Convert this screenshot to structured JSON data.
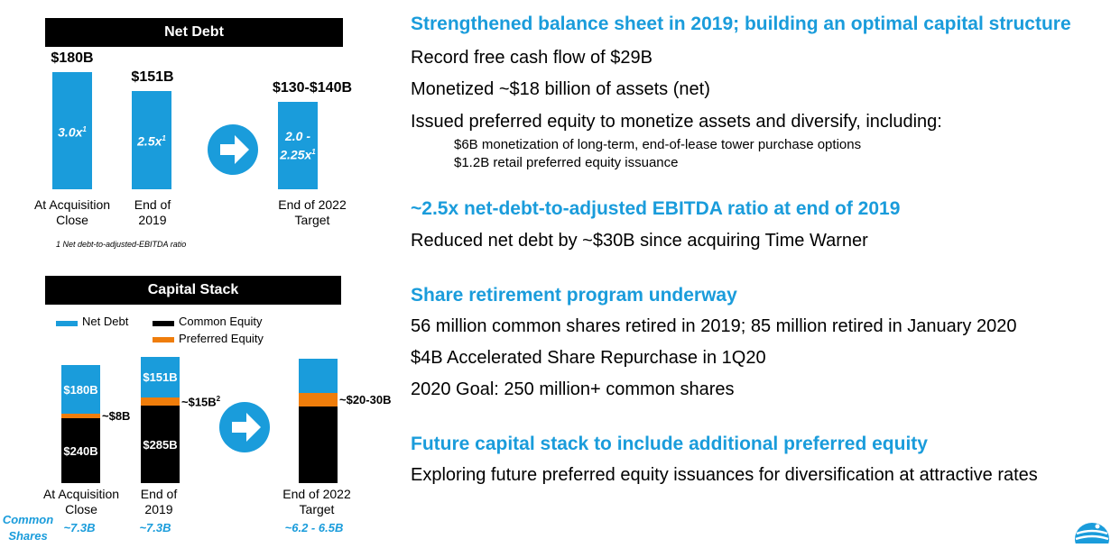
{
  "colors": {
    "accent": "#1a9cdb",
    "debt": "#1a9cdb",
    "common": "#000000",
    "preferred": "#ef7d0b"
  },
  "chart_data": [
    {
      "type": "bar",
      "title": "Net Debt",
      "categories": [
        "At Acquisition\nClose",
        "End of\n2019",
        "End of 2022\nTarget"
      ],
      "values": [
        180,
        151,
        135
      ],
      "value_labels": [
        "$180B",
        "$151B",
        "$130-$140B"
      ],
      "inner_labels": [
        "3.0x",
        "2.5x",
        "2.0 -\n2.25x"
      ],
      "inner_label_sup": "1",
      "footnote": "1 Net debt-to-adjusted-EBITDA ratio"
    },
    {
      "type": "bar",
      "stacked": true,
      "title": "Capital Stack",
      "categories": [
        "At Acquisition\nClose",
        "End of\n2019",
        "End of 2022\nTarget"
      ],
      "legend": [
        "Net Debt",
        "Common Equity",
        "Preferred Equity"
      ],
      "series": [
        {
          "name": "Common Equity",
          "values": [
            240,
            285,
            null
          ],
          "labels": [
            "$240B",
            "$285B",
            ""
          ]
        },
        {
          "name": "Preferred Equity",
          "values": [
            8,
            15,
            25
          ],
          "labels": [
            "~$8B",
            "~$15B",
            "~$20-30B"
          ],
          "sup": [
            "",
            "2",
            ""
          ]
        },
        {
          "name": "Net Debt",
          "values": [
            180,
            151,
            null
          ],
          "labels": [
            "$180B",
            "$151B",
            ""
          ]
        }
      ],
      "common_shares_label": "Common\nShares",
      "common_shares": [
        "~7.3B",
        "~7.3B",
        "~6.2 - 6.5B"
      ]
    }
  ],
  "right": {
    "heading1": "Strengthened balance sheet in 2019; building an optimal capital structure",
    "line1": "Record free cash flow of $29B",
    "line2": "Monetized ~$18 billion of assets (net)",
    "line3": "Issued preferred equity to monetize assets and diversify, including:",
    "sub1": "$6B monetization of long-term, end-of-lease tower purchase options",
    "sub2": "$1.2B retail preferred equity issuance",
    "heading2": "~2.5x net-debt-to-adjusted EBITDA ratio at end of 2019",
    "line4": "Reduced net debt by ~$30B since acquiring Time Warner",
    "heading3": "Share retirement program underway",
    "line5": "56 million common shares retired in 2019; 85 million retired in January 2020",
    "line6": "$4B Accelerated Share Repurchase in 1Q20",
    "line7": "2020 Goal:  250 million+ common shares",
    "heading4": "Future capital stack to include additional preferred equity",
    "line8": "Exploring future preferred equity issuances for diversification at attractive rates"
  }
}
